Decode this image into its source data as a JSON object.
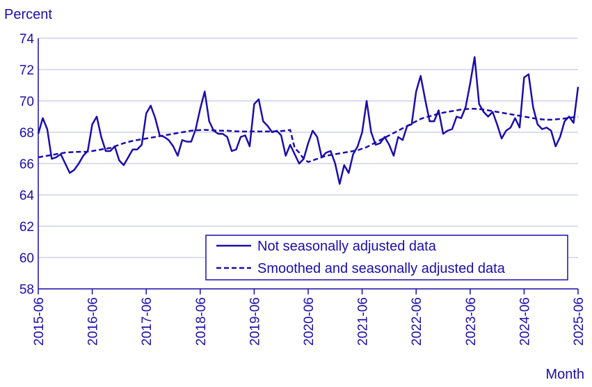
{
  "chart_data": {
    "type": "line",
    "title": "",
    "ylabel": "Percent",
    "xlabel": "Month",
    "ylim": [
      58,
      74
    ],
    "yticks": [
      58,
      60,
      62,
      64,
      66,
      68,
      70,
      72,
      74
    ],
    "x_start": "2015-06",
    "x_end": "2025-06",
    "xticks": [
      "2015-06",
      "2016-06",
      "2017-06",
      "2018-06",
      "2019-06",
      "2020-06",
      "2021-06",
      "2022-06",
      "2023-06",
      "2024-06",
      "2025-06"
    ],
    "grid": "horizontal",
    "legend_position": "bottom-right",
    "line_color": "#1a0dab",
    "series": [
      {
        "name": "Not seasonally adjusted data",
        "style": "solid",
        "values": [
          67.9,
          68.9,
          68.2,
          66.3,
          66.4,
          66.6,
          66.0,
          65.4,
          65.6,
          66.0,
          66.5,
          66.8,
          68.5,
          69.0,
          67.7,
          66.8,
          66.8,
          67.1,
          66.2,
          65.9,
          66.4,
          66.9,
          66.9,
          67.2,
          69.2,
          69.7,
          68.9,
          67.8,
          67.7,
          67.5,
          67.1,
          66.5,
          67.5,
          67.4,
          67.4,
          68.2,
          69.5,
          70.6,
          68.7,
          68.1,
          67.9,
          67.9,
          67.7,
          66.8,
          66.9,
          67.7,
          67.8,
          67.1,
          69.8,
          70.1,
          68.7,
          68.4,
          68.0,
          68.1,
          67.8,
          66.5,
          67.2,
          66.6,
          66.0,
          66.3,
          67.3,
          68.1,
          67.7,
          66.4,
          66.7,
          66.8,
          66.0,
          64.7,
          65.9,
          65.4,
          66.6,
          67.1,
          68.0,
          70.0,
          68.0,
          67.2,
          67.3,
          67.7,
          67.2,
          66.5,
          67.7,
          67.5,
          68.4,
          68.5,
          70.6,
          71.6,
          70.1,
          68.7,
          68.7,
          69.4,
          67.9,
          68.1,
          68.2,
          69.0,
          68.9,
          69.6,
          71.1,
          72.8,
          69.8,
          69.3,
          69.0,
          69.3,
          68.5,
          67.6,
          68.1,
          68.3,
          68.9,
          68.3,
          71.5,
          71.7,
          69.6,
          68.5,
          68.2,
          68.3,
          68.1,
          67.1,
          67.7,
          68.7,
          69.0,
          68.6,
          70.9
        ]
      },
      {
        "name": "Smoothed and seasonally adjusted data",
        "style": "dashed",
        "values": [
          66.4,
          66.45,
          66.5,
          66.55,
          66.6,
          66.65,
          66.7,
          66.72,
          66.74,
          66.75,
          66.75,
          66.76,
          66.8,
          66.85,
          66.9,
          66.95,
          67.0,
          67.1,
          67.2,
          67.3,
          67.38,
          67.45,
          67.5,
          67.55,
          67.6,
          67.65,
          67.7,
          67.75,
          67.8,
          67.85,
          67.9,
          67.95,
          68.0,
          68.05,
          68.1,
          68.12,
          68.14,
          68.15,
          68.14,
          68.12,
          68.1,
          68.1,
          68.1,
          68.08,
          68.06,
          68.05,
          68.05,
          68.05,
          68.05,
          68.05,
          68.05,
          68.05,
          68.05,
          68.06,
          68.08,
          68.1,
          68.15,
          67.0,
          66.7,
          66.3,
          66.1,
          66.2,
          66.3,
          66.4,
          66.5,
          66.55,
          66.6,
          66.65,
          66.7,
          66.75,
          66.8,
          66.85,
          66.95,
          67.05,
          67.2,
          67.35,
          67.5,
          67.65,
          67.8,
          67.95,
          68.1,
          68.25,
          68.4,
          68.55,
          68.7,
          68.85,
          68.95,
          69.02,
          69.1,
          69.18,
          69.25,
          69.3,
          69.35,
          69.4,
          69.45,
          69.48,
          69.5,
          69.5,
          69.48,
          69.45,
          69.4,
          69.35,
          69.3,
          69.25,
          69.2,
          69.15,
          69.1,
          69.05,
          69.0,
          68.95,
          68.9,
          68.85,
          68.82,
          68.8,
          68.8,
          68.82,
          68.85,
          68.88,
          68.92,
          68.96,
          69.0
        ]
      }
    ]
  }
}
